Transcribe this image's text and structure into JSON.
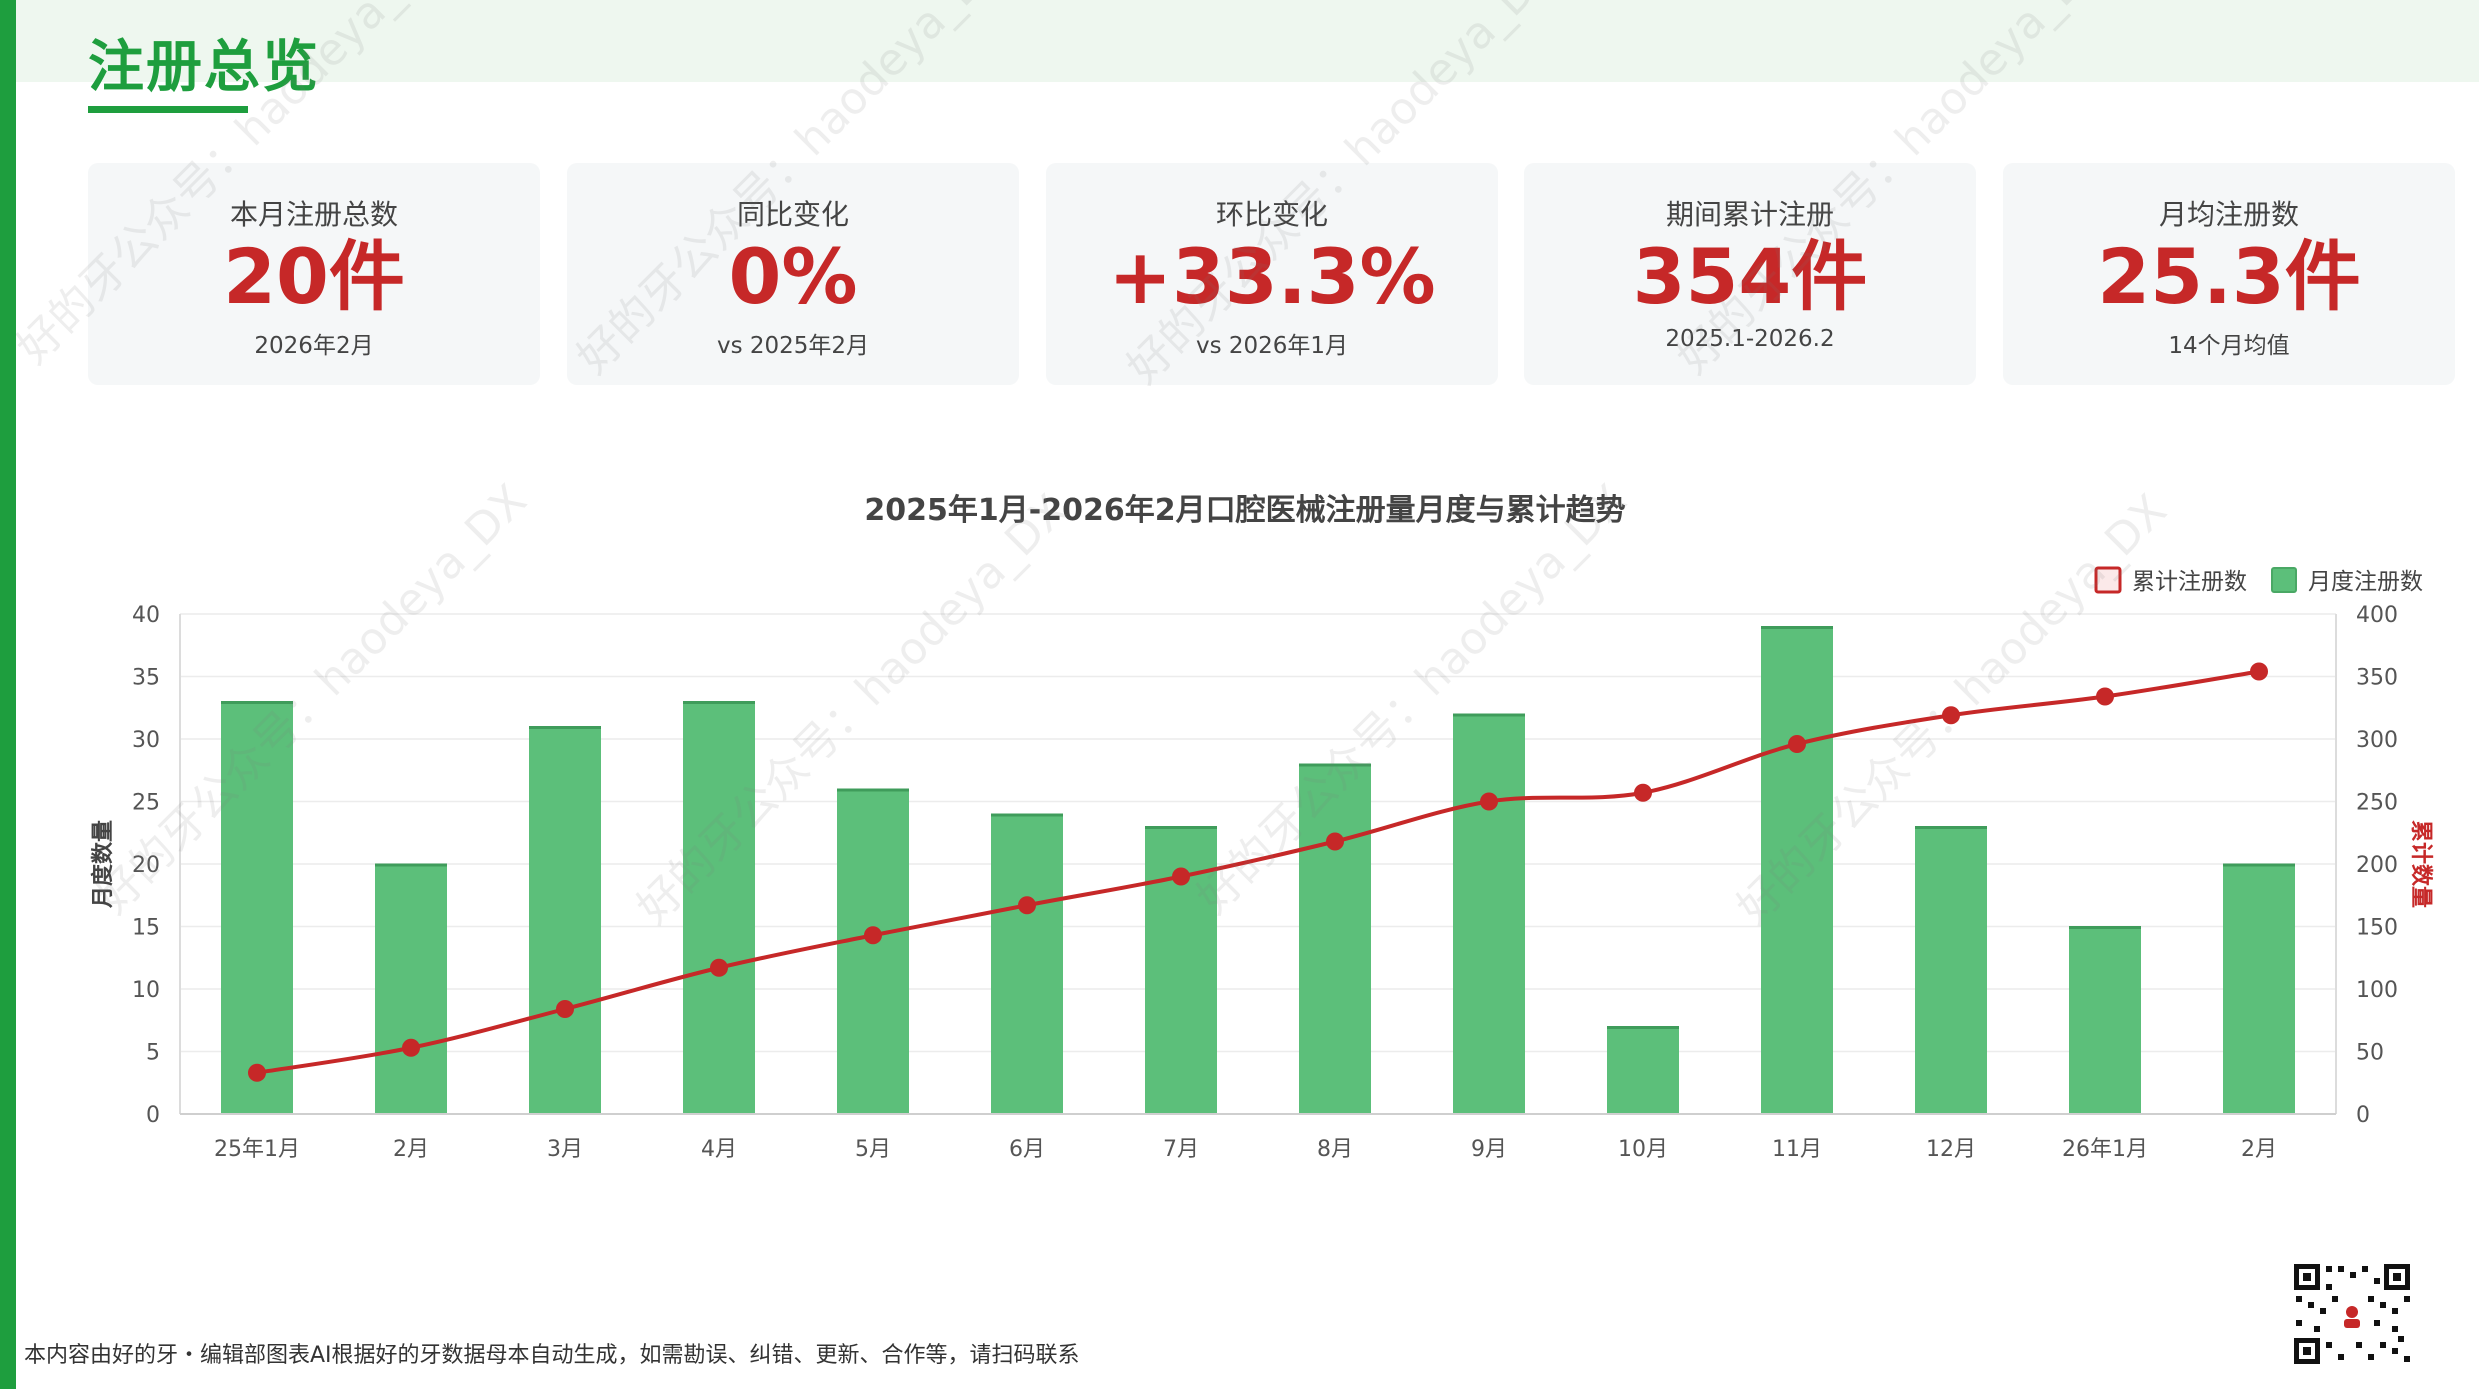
{
  "header": {
    "title": "注册总览"
  },
  "kpis": [
    {
      "label": "本月注册总数",
      "value": "20件",
      "sub": "2026年2月"
    },
    {
      "label": "同比变化",
      "value": "0%",
      "sub": "vs 2025年2月"
    },
    {
      "label": "环比变化",
      "value": "+33.3%",
      "sub": "vs 2026年1月"
    },
    {
      "label": "期间累计注册",
      "value": "354件",
      "sub": "2025.1-2026.2"
    },
    {
      "label": "月均注册数",
      "value": "25.3件",
      "sub": "14个月均值"
    }
  ],
  "colors": {
    "accent": "#1e9e3e",
    "bar": "#5cbf7a",
    "line": "#c62828",
    "kpi_value": "#c62828"
  },
  "chart_data": {
    "type": "bar",
    "title": "2025年1月-2026年2月口腔医械注册量月度与累计趋势",
    "categories": [
      "25年1月",
      "2月",
      "3月",
      "4月",
      "5月",
      "6月",
      "7月",
      "8月",
      "9月",
      "10月",
      "11月",
      "12月",
      "26年1月",
      "2月"
    ],
    "series": [
      {
        "name": "月度注册数",
        "type": "bar",
        "axis": "left",
        "values": [
          33,
          20,
          31,
          33,
          26,
          24,
          23,
          28,
          32,
          7,
          39,
          23,
          15,
          20
        ]
      },
      {
        "name": "累计注册数",
        "type": "line",
        "axis": "right",
        "values": [
          33,
          53,
          84,
          117,
          143,
          167,
          190,
          218,
          250,
          257,
          296,
          319,
          334,
          354
        ]
      }
    ],
    "ylabel": "月度数量",
    "y2label": "累计数量",
    "ylim": [
      0,
      40
    ],
    "y2lim": [
      0,
      400
    ],
    "yticks": [
      0,
      5,
      10,
      15,
      20,
      25,
      30,
      35,
      40
    ],
    "y2ticks": [
      0,
      50,
      100,
      150,
      200,
      250,
      300,
      350,
      400
    ],
    "legend_position": "top-right",
    "grid": true
  },
  "footer": {
    "note": "本内容由好的牙・编辑部图表AI根据好的牙数据母本自动生成，如需勘误、纠错、更新、合作等，请扫码联系"
  },
  "watermark": {
    "text": "好的牙公众号：haodeya_DX"
  },
  "icons": {
    "qr": "qr-code-icon"
  }
}
